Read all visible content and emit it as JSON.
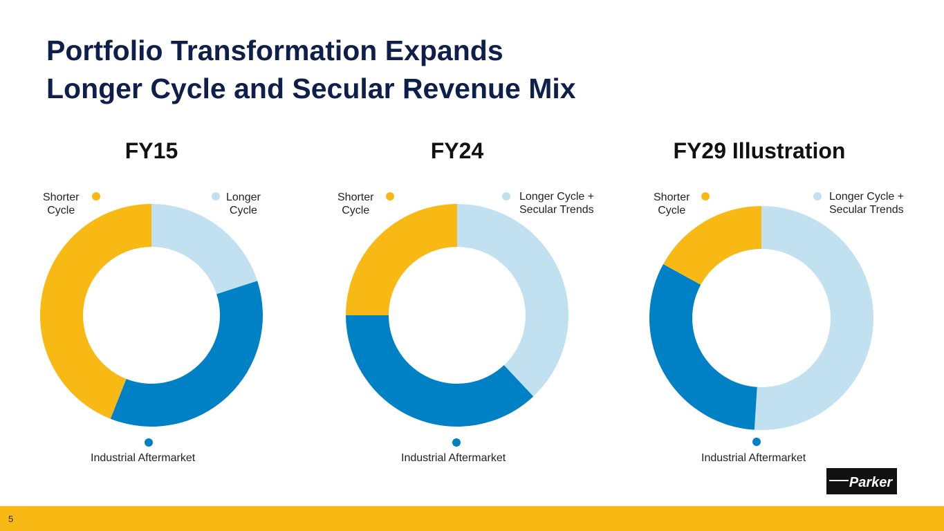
{
  "title": {
    "line1": "Portfolio Transformation Expands",
    "line2": "Longer Cycle and Secular Revenue Mix"
  },
  "colors": {
    "light_blue": "#c1e1f0",
    "blue": "#0081c6",
    "yellow": "#f9b915",
    "title": "#0f1f4b",
    "footer": "#f9b915"
  },
  "chart_data": [
    {
      "type": "pie",
      "title": "FY15",
      "slices": [
        {
          "name": "Longer Cycle",
          "value": 20
        },
        {
          "name": "Industrial Aftermarket",
          "value": 36
        },
        {
          "name": "Shorter Cycle",
          "value": 44
        }
      ]
    },
    {
      "type": "pie",
      "title": "FY24",
      "slices": [
        {
          "name": "Longer Cycle + Secular Trends",
          "value": 38
        },
        {
          "name": "Industrial Aftermarket",
          "value": 37
        },
        {
          "name": "Shorter Cycle",
          "value": 25
        }
      ]
    },
    {
      "type": "pie",
      "title": "FY29 Illustration",
      "slices": [
        {
          "name": "Longer Cycle + Secular Trends",
          "value": 51
        },
        {
          "name": "Industrial Aftermarket",
          "value": 32
        },
        {
          "name": "Shorter Cycle",
          "value": 17
        }
      ]
    }
  ],
  "labels": {
    "fy15": {
      "shorter": "Shorter\nCycle",
      "longer": "Longer\nCycle",
      "aftermarket": "Industrial Aftermarket"
    },
    "fy24": {
      "shorter": "Shorter\nCycle",
      "longer": "Longer Cycle +\nSecular Trends",
      "aftermarket": "Industrial Aftermarket"
    },
    "fy29": {
      "shorter": "Shorter\nCycle",
      "longer": "Longer Cycle +\nSecular Trends",
      "aftermarket": "Industrial Aftermarket"
    }
  },
  "logo": "Parker",
  "page_number": "5"
}
